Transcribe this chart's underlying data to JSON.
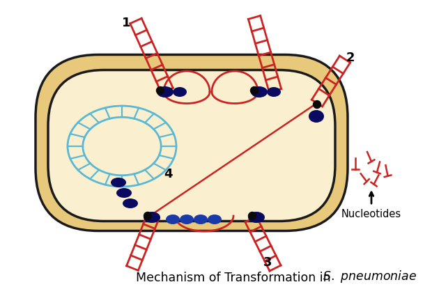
{
  "bg_color": "#FFFFFF",
  "cell_outer_fill": "#E8C87A",
  "cell_inner_fill": "#FAF0D0",
  "cell_edge_color": "#1A1A1A",
  "chromosome_color": "#5BB8D4",
  "dna_color": "#CC2222",
  "protein_dark": "#0A0A60",
  "protein_mid": "#1A3AAA",
  "dot_color": "#0A0A0A",
  "nuc_color": "#CC2222",
  "text_color": "#111111",
  "nucleotides_label": "Nucleotides",
  "label1": "1",
  "label2": "2",
  "label3": "3",
  "label4": "4"
}
